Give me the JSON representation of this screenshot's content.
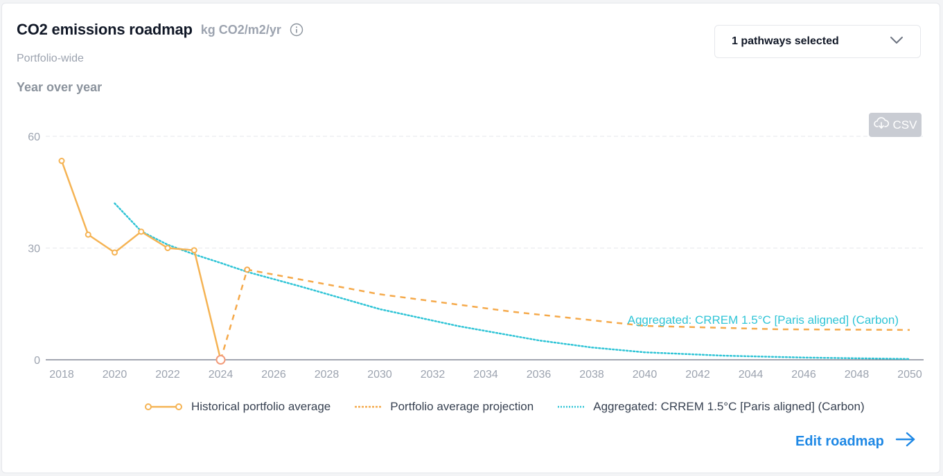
{
  "header": {
    "title": "CO2 emissions roadmap",
    "unit": "kg CO2/m2/yr",
    "subtitle": "Portfolio-wide",
    "section_title": "Year over year"
  },
  "dropdown": {
    "label": "1 pathways selected"
  },
  "csv_button": {
    "label": "CSV"
  },
  "edit_link": {
    "label": "Edit roadmap"
  },
  "icons": {
    "info": "info-circle-icon",
    "dropdown": "chevron-down-icon",
    "csv": "cloud-download-icon",
    "edit": "arrow-right-icon"
  },
  "colors": {
    "historical": "#f5b353",
    "projection": "#f5a94a",
    "pathway": "#2ec4d6",
    "link": "#1e88e5"
  },
  "chart_data": {
    "type": "line",
    "title": "",
    "xlabel": "",
    "ylabel": "",
    "xlim": [
      2018,
      2050
    ],
    "ylim": [
      0,
      60
    ],
    "x_ticks": [
      "2018",
      "2020",
      "2022",
      "2024",
      "2026",
      "2028",
      "2030",
      "2032",
      "2034",
      "2036",
      "2038",
      "2040",
      "2042",
      "2044",
      "2046",
      "2048",
      "2050"
    ],
    "y_ticks": [
      "0",
      "30",
      "60"
    ],
    "grid": true,
    "legend_position": "bottom",
    "pathway_annotation": "Aggregated:  CRREM 1.5°C [Paris aligned] (Carbon)",
    "series": [
      {
        "name": "Historical portfolio average",
        "style": "solid-with-markers",
        "points": [
          [
            2018,
            53.4
          ],
          [
            2019,
            33.6
          ],
          [
            2020,
            28.8
          ],
          [
            2021,
            34.4
          ],
          [
            2022,
            30.0
          ],
          [
            2023,
            29.4
          ],
          [
            2024,
            0
          ]
        ]
      },
      {
        "name": "Portfolio average projection",
        "style": "dashed",
        "points": [
          [
            2024,
            0
          ],
          [
            2025,
            24.2
          ],
          [
            2030,
            17.6
          ],
          [
            2035,
            12.9
          ],
          [
            2040,
            9.1
          ],
          [
            2045,
            8.2
          ],
          [
            2050,
            8.0
          ]
        ]
      },
      {
        "name": "Aggregated: CRREM 1.5°C [Paris aligned] (Carbon)",
        "style": "dotted",
        "points": [
          [
            2020,
            42.0
          ],
          [
            2021,
            34.5
          ],
          [
            2022,
            30.9
          ],
          [
            2023,
            28.3
          ],
          [
            2024,
            26.0
          ],
          [
            2025,
            23.6
          ],
          [
            2027,
            19.7
          ],
          [
            2030,
            13.6
          ],
          [
            2033,
            9.0
          ],
          [
            2036,
            5.2
          ],
          [
            2038,
            3.3
          ],
          [
            2040,
            2.0
          ],
          [
            2043,
            1.1
          ],
          [
            2046,
            0.6
          ],
          [
            2050,
            0.2
          ]
        ]
      }
    ]
  }
}
